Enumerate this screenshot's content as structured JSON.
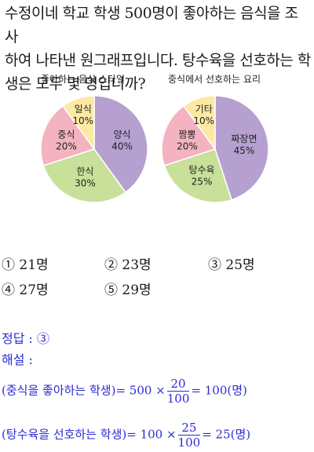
{
  "question": {
    "line1": "수정이네 학교 학생 500명이 좋아하는 음식을 조사",
    "line2": "하여 나타낸 원그래프입니다. 탕수육을 선호하는 학",
    "line3": "생은 모두 몇 명입니까?"
  },
  "chart_data": [
    {
      "type": "pie",
      "title": "좋아하는 음식 스타일",
      "slices": [
        {
          "label": "양식",
          "pct_label": "40%",
          "value": 40,
          "color": "#b5a0d0"
        },
        {
          "label": "한식",
          "pct_label": "30%",
          "value": 30,
          "color": "#c8e09a"
        },
        {
          "label": "중식",
          "pct_label": "20%",
          "value": 20,
          "color": "#f3b3c0"
        },
        {
          "label": "일식",
          "pct_label": "10%",
          "value": 10,
          "color": "#fde9a3"
        }
      ]
    },
    {
      "type": "pie",
      "title": "중식에서 선호하는 요리",
      "slices": [
        {
          "label": "짜장면",
          "pct_label": "45%",
          "value": 45,
          "color": "#b5a0d0"
        },
        {
          "label": "탕수육",
          "pct_label": "25%",
          "value": 25,
          "color": "#c8e09a"
        },
        {
          "label": "짬뽕",
          "pct_label": "20%",
          "value": 20,
          "color": "#f3b3c0"
        },
        {
          "label": "기타",
          "pct_label": "10%",
          "value": 10,
          "color": "#fde9a3"
        }
      ]
    }
  ],
  "options": [
    {
      "mark": "①",
      "text": "21명"
    },
    {
      "mark": "②",
      "text": "23명"
    },
    {
      "mark": "③",
      "text": "25명"
    },
    {
      "mark": "④",
      "text": "27명"
    },
    {
      "mark": "⑤",
      "text": "29명"
    }
  ],
  "answer": {
    "label": "정답 : ",
    "value": "③"
  },
  "explanation": {
    "label": "해설 :",
    "line1_pre": "(중식을 좋아하는 학생)= 500 ×",
    "line1_num": "20",
    "line1_den": "100",
    "line1_post": "= 100(명)",
    "line2_pre": "(탕수육을 선호하는 학생)= 100 ×",
    "line2_num": "25",
    "line2_den": "100",
    "line2_post": "= 25(명)"
  }
}
